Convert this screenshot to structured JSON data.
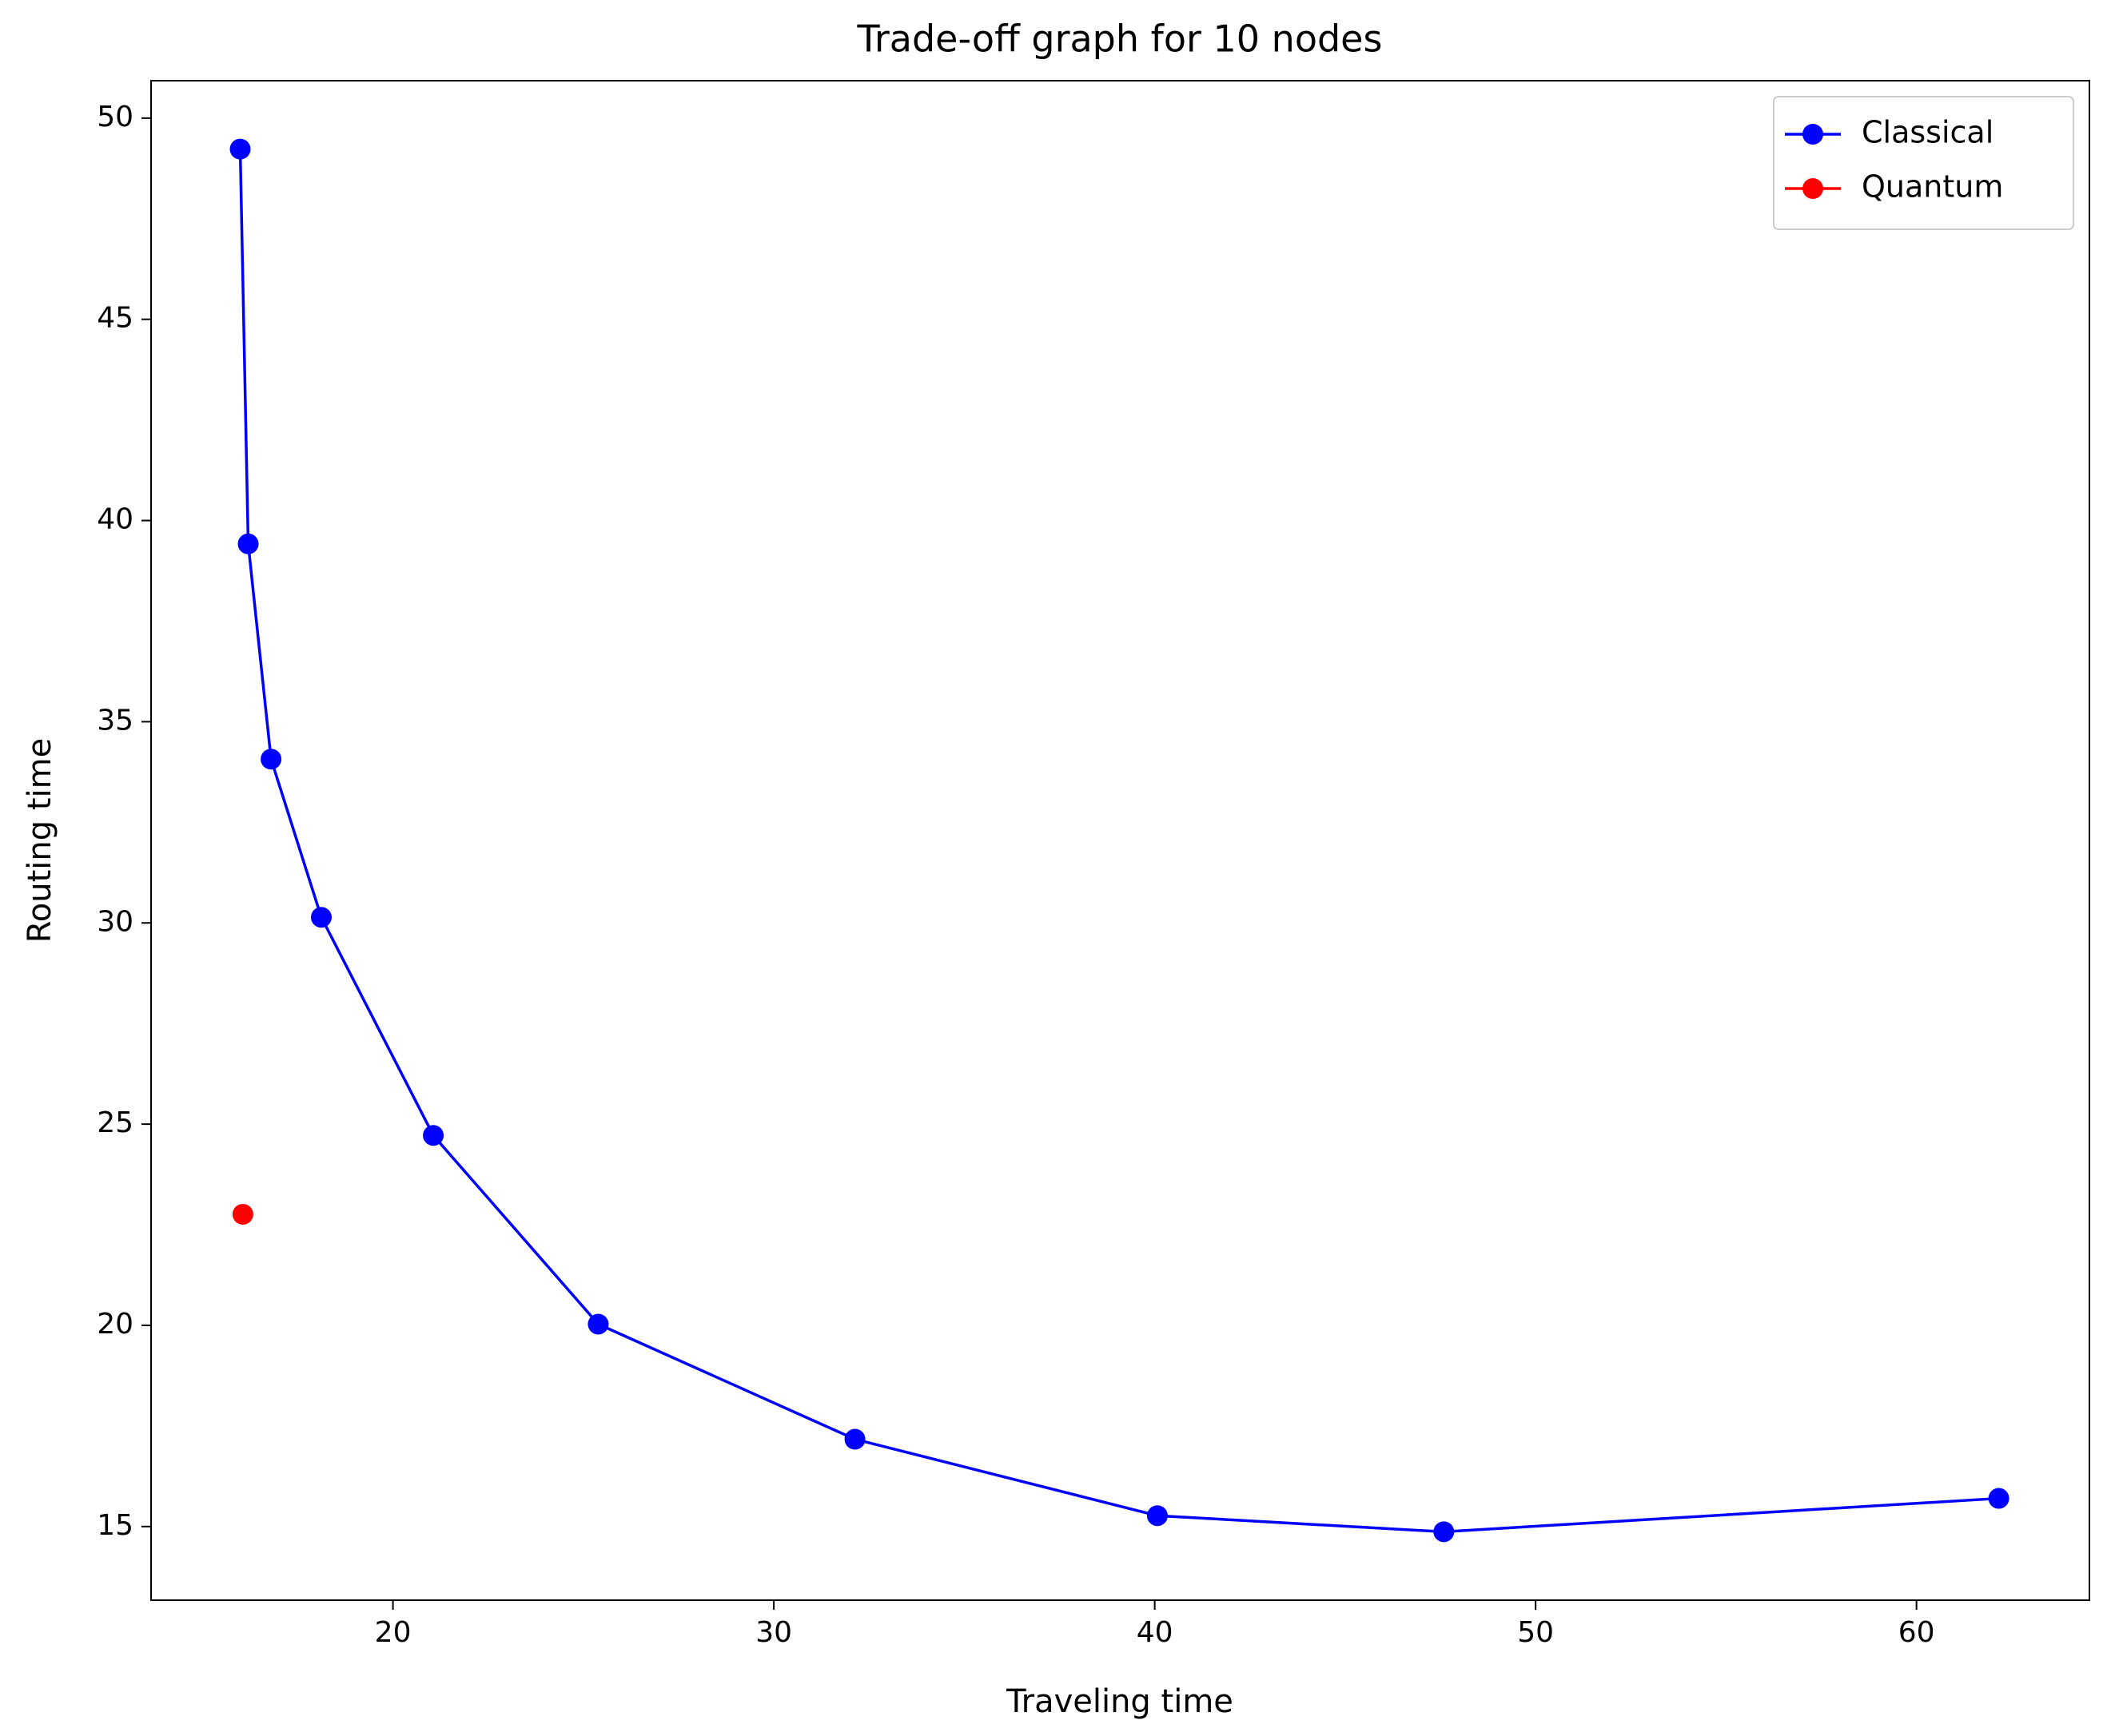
{
  "chart_data": {
    "type": "line",
    "title": "Trade-off graph for 10 nodes",
    "x_label": "Traveling time",
    "y_label": "Routing time",
    "series": [
      {
        "name": "Classical",
        "color": "#0000ff",
        "x": [
          15.99,
          16.2,
          16.8,
          18.12,
          21.06,
          25.39,
          32.13,
          40.07,
          47.59,
          62.16
        ],
        "values": [
          49.23,
          39.42,
          34.07,
          30.14,
          24.72,
          20.03,
          17.17,
          15.27,
          14.87,
          15.7
        ]
      },
      {
        "name": "Quantum",
        "color": "#ff0000",
        "x": [
          16.06
        ],
        "values": [
          22.76
        ]
      }
    ],
    "xlim": [
      13.65,
      64.54
    ],
    "ylim": [
      13.17,
      50.93
    ],
    "xticks": [
      20,
      30,
      40,
      50,
      60
    ],
    "yticks": [
      15,
      20,
      25,
      30,
      35,
      40,
      45,
      50
    ],
    "grid": false,
    "legend": "upper right"
  }
}
